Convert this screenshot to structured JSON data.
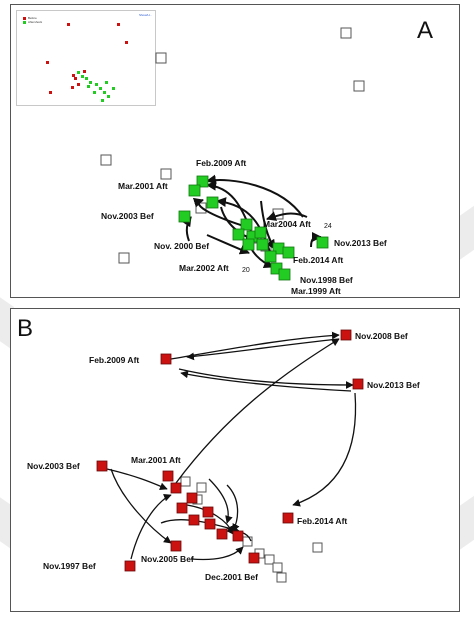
{
  "colors": {
    "green": "#22cc22",
    "red": "#cc1111",
    "arrow": "#111111",
    "box_border": "#555555",
    "watermark": "#dcdcdc"
  },
  "panel_a": {
    "letter": "A",
    "inset": {
      "legend": [
        "Before",
        "Aftershock"
      ],
      "link": "Show/H..."
    },
    "labels": {
      "feb2009": "Feb.2009 Aft",
      "mar2001": "Mar.2001 Aft",
      "nov2003": "Nov.2003 Bef",
      "nov2000": "Nov. 2000 Bef",
      "mar2004": "Mar2004 Aft",
      "nov2013": "Nov.2013 Bef",
      "mar2002": "Mar.2002 Aft",
      "feb2014": "Feb.2014 Aft",
      "nov1998": "Nov.1998 Bef",
      "mar1999": "Mar.1999 Aft"
    },
    "numbers": {
      "mar2004_n": "24",
      "mar2002_n": "20"
    }
  },
  "panel_b": {
    "letter": "B",
    "labels": {
      "nov2008": "Nov.2008 Bef",
      "feb2009": "Feb.2009 Aft",
      "nov2013": "Nov.2013 Bef",
      "mar2001": "Mar.2001 Aft",
      "nov2003": "Nov.2003 Bef",
      "feb2014": "Feb.2014 Aft",
      "nov2005": "Nov.2005 Bef",
      "nov1997": "Nov.1997 Bef",
      "dec2001": "Dec.2001 Bef"
    }
  }
}
